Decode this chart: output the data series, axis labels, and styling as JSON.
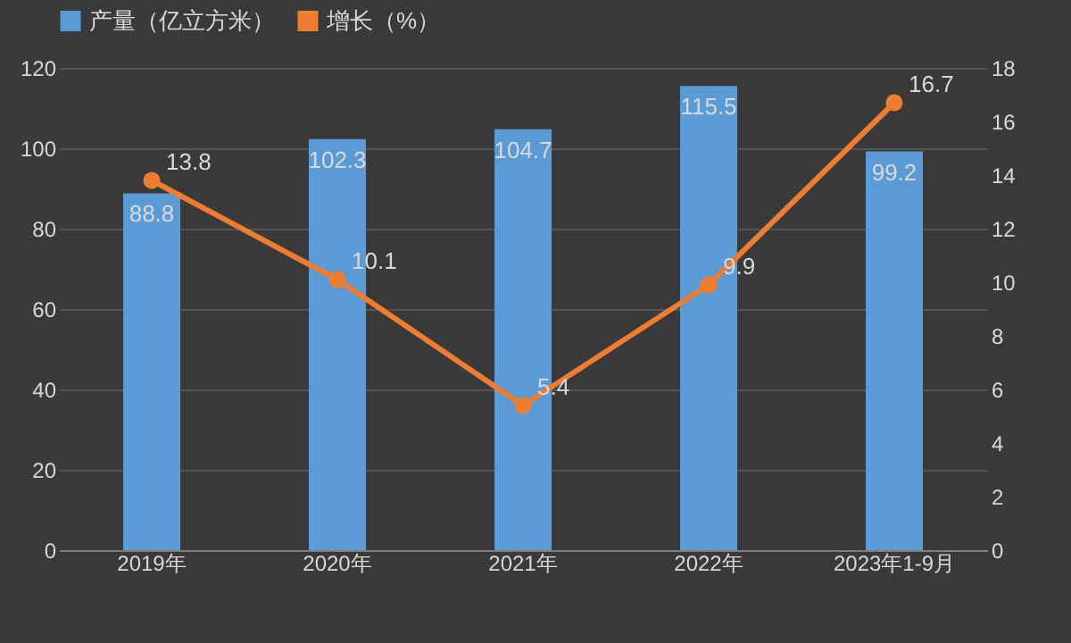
{
  "chart_data": {
    "type": "bar",
    "categories": [
      "2019年",
      "2020年",
      "2021年",
      "2022年",
      "2023年1-9月"
    ],
    "series": [
      {
        "name": "产量（亿立方米）",
        "color": "#5b9bd5",
        "values": [
          88.8,
          102.3,
          104.7,
          115.5,
          99.2
        ]
      },
      {
        "name": "增长（%）",
        "type": "line",
        "axis": "y2",
        "color": "#ed7d31",
        "values": [
          13.8,
          10.1,
          5.4,
          9.9,
          16.7
        ]
      }
    ],
    "ylim": [
      0,
      120
    ],
    "yticks": [
      0,
      20,
      40,
      60,
      80,
      100,
      120
    ],
    "y2lim": [
      0,
      18
    ],
    "y2ticks": [
      0,
      2,
      4,
      6,
      8,
      10,
      12,
      14,
      16,
      18
    ],
    "grid": "y",
    "legend": "top",
    "marker": "circle",
    "line_style": "solid",
    "data_labels": true
  }
}
